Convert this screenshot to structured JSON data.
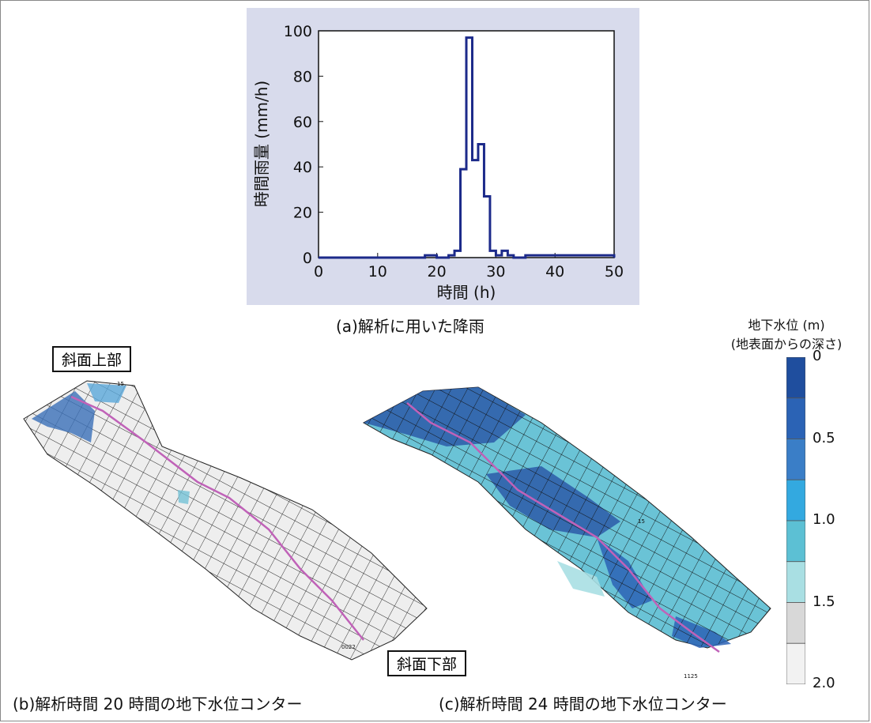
{
  "chart_data": [
    {
      "type": "line",
      "panel": "a",
      "xlabel": "時間 (h)",
      "ylabel": "時間雨量 (mm/h)",
      "xlim": [
        0,
        50
      ],
      "ylim": [
        0,
        100
      ],
      "xticks": [
        "0",
        "10",
        "20",
        "30",
        "40",
        "50"
      ],
      "yticks": [
        "0",
        "20",
        "40",
        "60",
        "80",
        "100"
      ],
      "step": true,
      "grid": false,
      "x": [
        0,
        17,
        18,
        19,
        20,
        21,
        22,
        23,
        24,
        25,
        26,
        27,
        28,
        29,
        30,
        31,
        32,
        33,
        34,
        35,
        50
      ],
      "y": [
        0,
        0,
        1,
        1,
        0,
        0,
        1,
        3,
        39,
        97,
        43,
        50,
        27,
        3,
        1,
        3,
        1,
        0,
        0,
        1,
        0
      ],
      "color": "#1c2a8a",
      "caption": "(a)解析に用いた降雨"
    },
    {
      "type": "heatmap",
      "panel": "b",
      "title": "",
      "caption": "(b)解析時間 20 時間の地下水位コンター",
      "upper_label": "斜面上部",
      "lower_label": "斜面下部",
      "tiny_label_top": "15",
      "tiny_label_bottom": "0022"
    },
    {
      "type": "heatmap",
      "panel": "c",
      "caption": "(c)解析時間 24 時間の地下水位コンター",
      "tiny_label_mid": "15",
      "tiny_label_bottom": "1125"
    }
  ],
  "legend": {
    "title_line1": "地下水位 (m)",
    "title_line2": "(地表面からの深さ)",
    "ticks": [
      "0",
      "0.5",
      "1.0",
      "1.5",
      "2.0"
    ],
    "colors": [
      "#1f4e9e",
      "#2b63b5",
      "#3a7ec7",
      "#33a9e0",
      "#5cc0d4",
      "#a9dfe3",
      "#d8d8d8",
      "#f2f2f2"
    ]
  }
}
